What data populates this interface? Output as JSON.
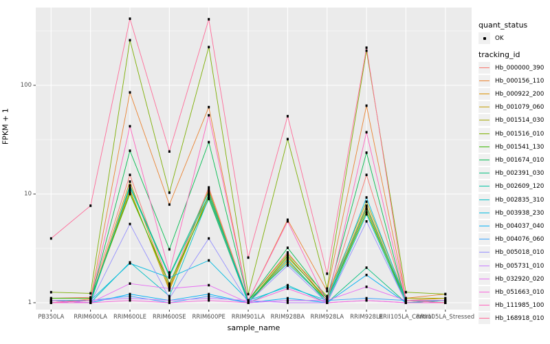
{
  "figure": {
    "y_axis_title": "FPKM + 1",
    "x_axis_title": "sample_name",
    "panel_background": "#EBEBEB",
    "gridline_color": "#FFFFFF",
    "tick_text_color": "#4D4D4D",
    "point_color": "#000000"
  },
  "legend": {
    "quant_status": {
      "title": "quant_status",
      "items": [
        {
          "label": "OK",
          "symbol": "point"
        }
      ]
    },
    "tracking": {
      "title": "tracking_id",
      "items": [
        {
          "label": "Hb_000000_390",
          "color": "#F8766D"
        },
        {
          "label": "Hb_000156_110",
          "color": "#EA8331"
        },
        {
          "label": "Hb_000922_200",
          "color": "#D89000"
        },
        {
          "label": "Hb_001079_060",
          "color": "#C09B00"
        },
        {
          "label": "Hb_001514_030",
          "color": "#A3A500"
        },
        {
          "label": "Hb_001516_010",
          "color": "#7CAE00"
        },
        {
          "label": "Hb_001541_130",
          "color": "#39B600"
        },
        {
          "label": "Hb_001674_010",
          "color": "#00BB4E"
        },
        {
          "label": "Hb_002391_030",
          "color": "#00BF7D"
        },
        {
          "label": "Hb_002609_120",
          "color": "#00C1A3"
        },
        {
          "label": "Hb_002835_310",
          "color": "#00BFC4"
        },
        {
          "label": "Hb_003938_230",
          "color": "#00BAE0"
        },
        {
          "label": "Hb_004037_040",
          "color": "#00B0F6"
        },
        {
          "label": "Hb_004076_060",
          "color": "#35A2FF"
        },
        {
          "label": "Hb_005018_010",
          "color": "#9590FF"
        },
        {
          "label": "Hb_005731_010",
          "color": "#C77CFF"
        },
        {
          "label": "Hb_032920_020",
          "color": "#E76BF3"
        },
        {
          "label": "Hb_051663_010",
          "color": "#FA62DB"
        },
        {
          "label": "Hb_111985_100",
          "color": "#FF62BC"
        },
        {
          "label": "Hb_168918_010",
          "color": "#FF6A98"
        }
      ]
    }
  },
  "chart_data": {
    "type": "line",
    "title": "",
    "xlabel": "sample_name",
    "ylabel": "FPKM + 1",
    "y_scale": "log10",
    "y_major_ticks": [
      1,
      10,
      100
    ],
    "y_minor_breaks": [
      3.162,
      31.62,
      316.2
    ],
    "ylim_log": [
      0.93,
      510
    ],
    "grid": "on",
    "legend_position": "right",
    "categories": [
      "PB350LA",
      "RRIM600LA",
      "RRIM600LE",
      "RRIM600SE",
      "RRIM600PE",
      "RRIM901LA",
      "RRIM928BA",
      "RRIM928LA",
      "RRIM928LE",
      "RRII105LA_Control",
      "RRII105LA_Stressed"
    ],
    "series": [
      {
        "name": "Hb_000000_390",
        "color": "#F8766D",
        "values": [
          1.1,
          1.12,
          15.0,
          1.45,
          11.5,
          1.05,
          2.9,
          1.05,
          15.0,
          1.05,
          1.05
        ]
      },
      {
        "name": "Hb_000156_110",
        "color": "#EA8331",
        "values": [
          1.0,
          1.08,
          86.0,
          8.0,
          63.0,
          1.05,
          5.8,
          1.28,
          65.0,
          1.1,
          1.2
        ]
      },
      {
        "name": "Hb_000922_200",
        "color": "#D89000",
        "values": [
          1.05,
          1.05,
          13.0,
          1.35,
          11.0,
          1.0,
          2.6,
          1.1,
          7.8,
          1.05,
          1.1
        ]
      },
      {
        "name": "Hb_001079_060",
        "color": "#C09B00",
        "values": [
          1.0,
          1.05,
          11.0,
          1.3,
          10.0,
          1.0,
          2.4,
          1.05,
          7.2,
          1.0,
          1.05
        ]
      },
      {
        "name": "Hb_001514_030",
        "color": "#A3A500",
        "values": [
          1.05,
          1.05,
          10.5,
          1.4,
          9.5,
          1.05,
          2.8,
          1.15,
          8.5,
          1.1,
          1.1
        ]
      },
      {
        "name": "Hb_001516_010",
        "color": "#7CAE00",
        "values": [
          1.25,
          1.22,
          260,
          10.3,
          225,
          1.2,
          32.0,
          1.35,
          208,
          1.25,
          1.2
        ]
      },
      {
        "name": "Hb_001541_130",
        "color": "#39B600",
        "values": [
          1.1,
          1.1,
          10.0,
          1.5,
          9.0,
          1.0,
          2.7,
          1.05,
          6.8,
          1.05,
          1.05
        ]
      },
      {
        "name": "Hb_001674_010",
        "color": "#00BB4E",
        "values": [
          1.0,
          1.05,
          25.0,
          3.1,
          30.0,
          1.05,
          3.2,
          1.1,
          24.0,
          1.0,
          1.0
        ]
      },
      {
        "name": "Hb_002391_030",
        "color": "#00BF7D",
        "values": [
          1.05,
          1.0,
          12.0,
          1.8,
          10.5,
          1.0,
          2.5,
          1.0,
          2.1,
          1.0,
          1.05
        ]
      },
      {
        "name": "Hb_002609_120",
        "color": "#00C1A3",
        "values": [
          1.0,
          1.05,
          11.5,
          1.75,
          9.8,
          1.05,
          2.3,
          1.05,
          7.5,
          1.05,
          1.0
        ]
      },
      {
        "name": "Hb_002835_310",
        "color": "#00BFC4",
        "values": [
          1.05,
          1.0,
          2.35,
          1.15,
          9.2,
          1.0,
          1.45,
          1.0,
          6.5,
          1.0,
          1.05
        ]
      },
      {
        "name": "Hb_003938_230",
        "color": "#00BAE0",
        "values": [
          1.0,
          1.05,
          2.3,
          1.7,
          2.45,
          1.05,
          1.4,
          1.05,
          9.3,
          1.05,
          1.0
        ]
      },
      {
        "name": "Hb_004037_040",
        "color": "#00B0F6",
        "values": [
          1.0,
          1.0,
          1.2,
          1.05,
          1.2,
          1.0,
          1.1,
          1.0,
          1.8,
          1.0,
          1.0
        ]
      },
      {
        "name": "Hb_004076_060",
        "color": "#35A2FF",
        "values": [
          1.05,
          1.05,
          1.15,
          1.0,
          1.15,
          1.0,
          1.05,
          1.05,
          1.1,
          1.05,
          1.05
        ]
      },
      {
        "name": "Hb_005018_010",
        "color": "#9590FF",
        "values": [
          1.0,
          1.0,
          5.3,
          1.1,
          3.9,
          1.0,
          2.2,
          1.0,
          5.6,
          1.0,
          1.0
        ]
      },
      {
        "name": "Hb_005731_010",
        "color": "#C77CFF",
        "values": [
          1.0,
          1.05,
          1.1,
          1.05,
          1.1,
          1.05,
          1.0,
          1.0,
          1.05,
          1.0,
          1.0
        ]
      },
      {
        "name": "Hb_032920_020",
        "color": "#E76BF3",
        "values": [
          1.05,
          1.0,
          1.5,
          1.35,
          1.45,
          1.0,
          1.05,
          1.05,
          1.4,
          1.05,
          1.05
        ]
      },
      {
        "name": "Hb_051663_010",
        "color": "#FA62DB",
        "values": [
          1.0,
          1.0,
          1.05,
          1.0,
          1.05,
          1.0,
          1.35,
          1.0,
          1.05,
          1.0,
          1.0
        ]
      },
      {
        "name": "Hb_111985_100",
        "color": "#FF62BC",
        "values": [
          1.0,
          1.05,
          42.0,
          1.9,
          53.0,
          1.05,
          5.6,
          1.0,
          37.0,
          1.05,
          1.0
        ]
      },
      {
        "name": "Hb_168918_010",
        "color": "#FF6A98",
        "values": [
          3.9,
          7.8,
          410,
          24.6,
          405,
          2.6,
          52.0,
          1.85,
          222,
          1.05,
          1.0
        ]
      }
    ]
  }
}
